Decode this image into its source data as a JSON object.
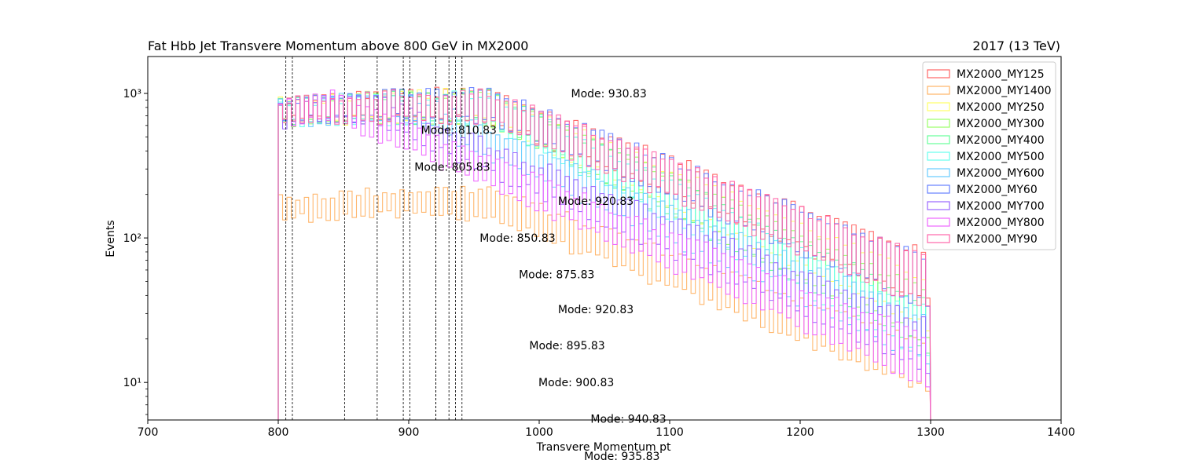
{
  "chart_data": {
    "type": "step-histogram",
    "title": "Fat Hbb Jet Transvere Momentum above 800 GeV in MX2000",
    "title_right": "2017 (13 TeV)",
    "xlabel": "Transvere Momentum pt",
    "ylabel": "Events",
    "xlim": [
      700,
      1400
    ],
    "ylim": [
      5.5,
      1800
    ],
    "yscale": "log",
    "x_ticks": [
      700,
      800,
      900,
      1000,
      1100,
      1200,
      1300,
      1400
    ],
    "x_tick_labels": [
      "700",
      "800",
      "900",
      "1000",
      "1100",
      "1200",
      "1300",
      "1400"
    ],
    "y_ticks": [
      10,
      100,
      1000
    ],
    "y_tick_labels": [
      "10¹",
      "10²",
      "10³"
    ],
    "legend_position": "upper-right",
    "bin_range": [
      800,
      1300
    ],
    "bin_width": 3.33,
    "series": [
      {
        "name": "MX2000_MY125",
        "color": "#ff6666",
        "start": 900,
        "end": 75,
        "mode": 930.83
      },
      {
        "name": "MX2000_MY1400",
        "color": "#ffb366",
        "start": 190,
        "end": 18,
        "mode": 935.83
      },
      {
        "name": "MX2000_MY250",
        "color": "#ffff66",
        "start": 880,
        "end": 50,
        "mode": 920.83
      },
      {
        "name": "MX2000_MY300",
        "color": "#99ff66",
        "start": 880,
        "end": 40,
        "mode": 920.83
      },
      {
        "name": "MX2000_MY400",
        "color": "#66ff99",
        "start": 870,
        "end": 35,
        "mode": 900.83
      },
      {
        "name": "MX2000_MY500",
        "color": "#66ffee",
        "start": 860,
        "end": 30,
        "mode": 895.83
      },
      {
        "name": "MX2000_MY600",
        "color": "#66ccff",
        "start": 850,
        "end": 28,
        "mode": 875.83
      },
      {
        "name": "MX2000_MY60",
        "color": "#6680ff",
        "start": 900,
        "end": 70,
        "mode": 940.83
      },
      {
        "name": "MX2000_MY700",
        "color": "#9966ff",
        "start": 840,
        "end": 25,
        "mode": 850.83
      },
      {
        "name": "MX2000_MY800",
        "color": "#ee66ff",
        "start": 850,
        "end": 20,
        "mode": 810.83
      },
      {
        "name": "MX2000_MY90",
        "color": "#ff66aa",
        "start": 880,
        "end": 70,
        "mode": 805.83
      }
    ],
    "mode_lines": [
      805.83,
      810.83,
      850.83,
      875.83,
      895.83,
      900.83,
      920.83,
      920.83,
      930.83,
      935.83,
      940.83
    ],
    "annotations": [
      {
        "text": "Mode: 930.83",
        "x": 1025,
        "y": 1000
      },
      {
        "text": "Mode: 810.83",
        "x": 910,
        "y": 560
      },
      {
        "text": "Mode: 805.83",
        "x": 905,
        "y": 310
      },
      {
        "text": "Mode: 920.83",
        "x": 1015,
        "y": 180
      },
      {
        "text": "Mode: 850.83",
        "x": 955,
        "y": 100
      },
      {
        "text": "Mode: 875.83",
        "x": 985,
        "y": 56
      },
      {
        "text": "Mode: 920.83",
        "x": 1015,
        "y": 32
      },
      {
        "text": "Mode: 895.83",
        "x": 993,
        "y": 18
      },
      {
        "text": "Mode: 900.83",
        "x": 1000,
        "y": 10
      },
      {
        "text": "Mode: 940.83",
        "x": 1040,
        "y": 5.6
      },
      {
        "text": "Mode: 935.83",
        "x": 1035,
        "y": 3.1
      }
    ]
  }
}
